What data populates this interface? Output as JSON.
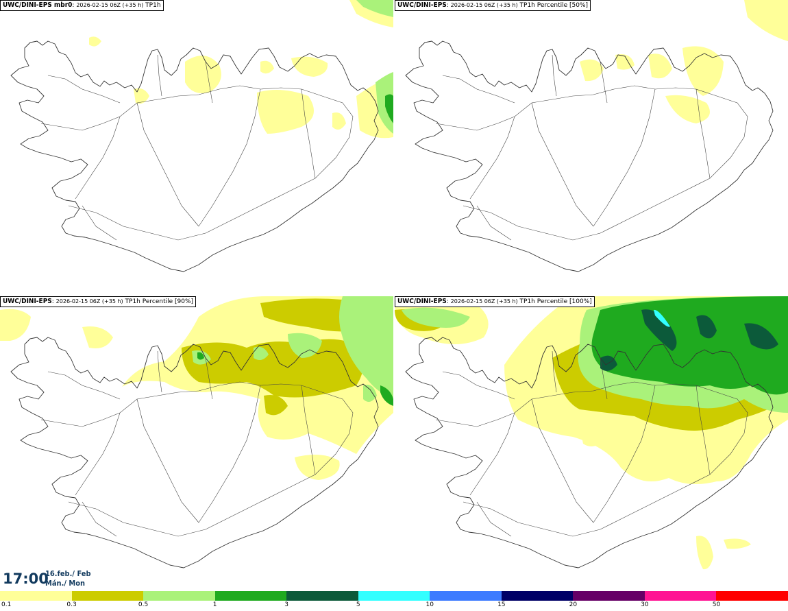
{
  "panels": [
    {
      "model": "UWC/DINI-EPS mbr0",
      "run": "2026-02-15 06Z (+35 h)",
      "field": "TP1h"
    },
    {
      "model": "UWC/DINI-EPS",
      "run": "2026-02-15 06Z (+35 h)",
      "field": "TP1h Percentile [50%]"
    },
    {
      "model": "UWC/DINI-EPS",
      "run": "2026-02-15 06Z (+35 h)",
      "field": "TP1h Percentile [90%]"
    },
    {
      "model": "UWC/DINI-EPS",
      "run": "2026-02-15 06Z (+35 h)",
      "field": "TP1h Percentile [100%]"
    }
  ],
  "valid_time": {
    "time": "17:00",
    "date_line1": "16.feb./ Feb",
    "date_line2": "Mán./ Mon"
  },
  "legend": {
    "levels": [
      "0.1",
      "0.3",
      "0.5",
      "1",
      "3",
      "5",
      "10",
      "15",
      "20",
      "30",
      "50"
    ],
    "colors": [
      "#ffff99",
      "#cccc00",
      "#aaf27a",
      "#1faa1f",
      "#0c5a3a",
      "#33ffff",
      "#3d7bff",
      "#000066",
      "#660066",
      "#ff1493",
      "#ff0000"
    ]
  }
}
